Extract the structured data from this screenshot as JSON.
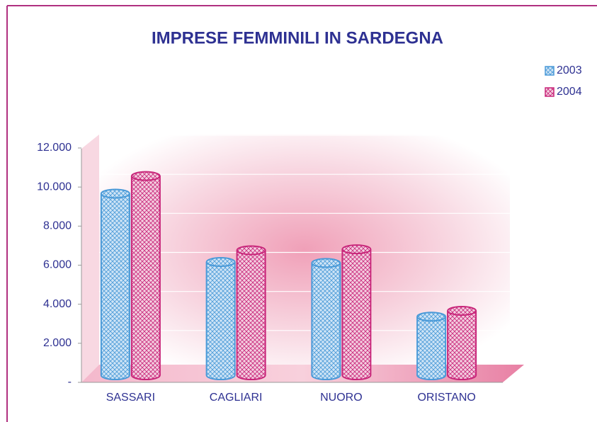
{
  "chart_data": {
    "type": "bar",
    "title": "IMPRESE FEMMINILI IN SARDEGNA",
    "categories": [
      "SASSARI",
      "CAGLIARI",
      "NUORO",
      "ORISTANO"
    ],
    "series": [
      {
        "name": "2003",
        "color": "#4a9ad8",
        "values": [
          9300,
          5800,
          5750,
          3000
        ]
      },
      {
        "name": "2004",
        "color": "#c8267a",
        "values": [
          10200,
          6400,
          6450,
          3300
        ]
      }
    ],
    "ylim": [
      0,
      12000
    ],
    "yticks": [
      {
        "value": 0,
        "label": "-"
      },
      {
        "value": 2000,
        "label": "2.000"
      },
      {
        "value": 4000,
        "label": "4.000"
      },
      {
        "value": 6000,
        "label": "6.000"
      },
      {
        "value": 8000,
        "label": "8.000"
      },
      {
        "value": 10000,
        "label": "10.000"
      },
      {
        "value": 12000,
        "label": "12.000"
      }
    ],
    "grid": true,
    "legend": "top-right"
  }
}
